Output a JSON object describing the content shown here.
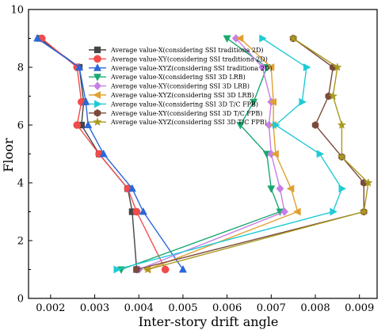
{
  "chart_data": {
    "type": "line",
    "xlabel": "Inter-story drift angle",
    "ylabel": "Floor",
    "xlim": [
      0.0015,
      0.0094
    ],
    "ylim": [
      0,
      10
    ],
    "xticks": [
      {
        "value": 0.002,
        "label": "0.002"
      },
      {
        "value": 0.003,
        "label": "0.003"
      },
      {
        "value": 0.004,
        "label": "0.004"
      },
      {
        "value": 0.005,
        "label": "0.005"
      },
      {
        "value": 0.006,
        "label": "0.006"
      },
      {
        "value": 0.007,
        "label": "0.007"
      },
      {
        "value": 0.008,
        "label": "0.008"
      },
      {
        "value": 0.009,
        "label": "0.009"
      }
    ],
    "yticks": [
      {
        "value": 0,
        "label": "0"
      },
      {
        "value": 2,
        "label": "2"
      },
      {
        "value": 4,
        "label": "4"
      },
      {
        "value": 6,
        "label": "6"
      },
      {
        "value": 8,
        "label": "8"
      },
      {
        "value": 10,
        "label": "10"
      }
    ],
    "grid": false,
    "legend_position": "top-left",
    "series": [
      {
        "name": "Average value-X(considering SSI traditiona 2D)",
        "color": "#444444",
        "marker": "square",
        "points": [
          [
            0.00395,
            1
          ],
          [
            0.00385,
            3
          ],
          [
            0.00375,
            3.8
          ],
          [
            0.0031,
            5
          ],
          [
            0.0027,
            6
          ],
          [
            0.00275,
            6.8
          ],
          [
            0.00265,
            8
          ],
          [
            0.00175,
            9
          ]
        ]
      },
      {
        "name": "Average value-XY(considering SSI traditiona 2D)",
        "color": "#f24b4b",
        "marker": "circle",
        "points": [
          [
            0.0046,
            1
          ],
          [
            0.00395,
            3
          ],
          [
            0.00375,
            3.8
          ],
          [
            0.0031,
            5
          ],
          [
            0.0026,
            6
          ],
          [
            0.0027,
            6.8
          ],
          [
            0.0026,
            8
          ],
          [
            0.0018,
            9
          ]
        ]
      },
      {
        "name": "Average value-XYZ(considering SSI traditiona 2D)",
        "color": "#2b67d9",
        "marker": "triangle-up",
        "points": [
          [
            0.005,
            1
          ],
          [
            0.0041,
            3
          ],
          [
            0.00385,
            3.8
          ],
          [
            0.0032,
            5
          ],
          [
            0.00285,
            6
          ],
          [
            0.0028,
            6.8
          ],
          [
            0.00265,
            8
          ],
          [
            0.0017,
            9
          ]
        ]
      },
      {
        "name": "Average value-X(considering SSI 3D LRB)",
        "color": "#1aa870",
        "marker": "triangle-down",
        "points": [
          [
            0.0036,
            1
          ],
          [
            0.0072,
            3
          ],
          [
            0.007,
            3.8
          ],
          [
            0.0069,
            5
          ],
          [
            0.0063,
            6
          ],
          [
            0.0066,
            6.8
          ],
          [
            0.0069,
            8
          ],
          [
            0.006,
            9
          ]
        ]
      },
      {
        "name": "Average value-XY(considering SSI 3D LRB)",
        "color": "#c77ee6",
        "marker": "diamond",
        "points": [
          [
            0.004,
            1
          ],
          [
            0.0073,
            3
          ],
          [
            0.0072,
            3.8
          ],
          [
            0.007,
            5
          ],
          [
            0.00695,
            6
          ],
          [
            0.007,
            6.8
          ],
          [
            0.0068,
            8
          ],
          [
            0.0062,
            9
          ]
        ]
      },
      {
        "name": "Average value-XYZ(considering SSI 3D LRB)",
        "color": "#e0a030",
        "marker": "triangle-left",
        "points": [
          [
            0.0042,
            1
          ],
          [
            0.0076,
            3
          ],
          [
            0.00745,
            3.8
          ],
          [
            0.0071,
            5
          ],
          [
            0.00705,
            6
          ],
          [
            0.00705,
            6.8
          ],
          [
            0.007,
            8
          ],
          [
            0.0063,
            9
          ]
        ]
      },
      {
        "name": "Average value-X(considering SSI 3D T/C FPB)",
        "color": "#20cbd6",
        "marker": "triangle-right",
        "points": [
          [
            0.0035,
            1
          ],
          [
            0.0084,
            3
          ],
          [
            0.0086,
            3.8
          ],
          [
            0.0081,
            5
          ],
          [
            0.0071,
            6
          ],
          [
            0.0077,
            6.8
          ],
          [
            0.0078,
            8
          ],
          [
            0.0068,
            9
          ]
        ]
      },
      {
        "name": "Average value-XY(considering SSI 3D T/C FPB)",
        "color": "#7a4a3c",
        "marker": "hexagon",
        "points": [
          [
            0.00395,
            1
          ],
          [
            0.0091,
            3
          ],
          [
            0.0091,
            4
          ],
          [
            0.0086,
            4.9
          ],
          [
            0.008,
            6
          ],
          [
            0.0083,
            7
          ],
          [
            0.0084,
            8
          ],
          [
            0.0075,
            9
          ]
        ]
      },
      {
        "name": "Average value-XYZ(considering SSI 3D T/C FPB)",
        "color": "#a89a1e",
        "marker": "star",
        "points": [
          [
            0.0042,
            1
          ],
          [
            0.0091,
            3
          ],
          [
            0.0092,
            4
          ],
          [
            0.0086,
            4.9
          ],
          [
            0.0086,
            6
          ],
          [
            0.0084,
            7
          ],
          [
            0.0085,
            8
          ],
          [
            0.0075,
            9
          ]
        ]
      }
    ]
  }
}
